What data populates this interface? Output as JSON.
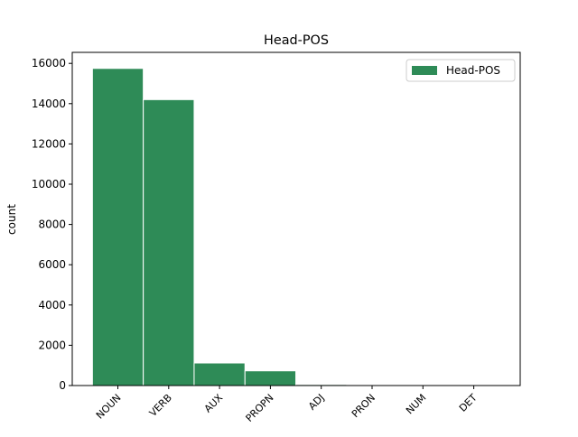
{
  "chart_data": {
    "type": "bar",
    "title": "Head-POS",
    "y_label": "count",
    "categories": [
      "NOUN",
      "VERB",
      "AUX",
      "PROPN",
      "ADJ",
      "PRON",
      "NUM",
      "DET"
    ],
    "series": [
      {
        "name": "Head-POS",
        "color": "#2e8b57",
        "values": [
          15750,
          14200,
          1120,
          730,
          50,
          5,
          2,
          1
        ]
      }
    ],
    "ylim": [
      0,
      16547
    ],
    "yticks": [
      0,
      2000,
      4000,
      6000,
      8000,
      10000,
      12000,
      14000,
      16000
    ],
    "legend": "upper right"
  }
}
